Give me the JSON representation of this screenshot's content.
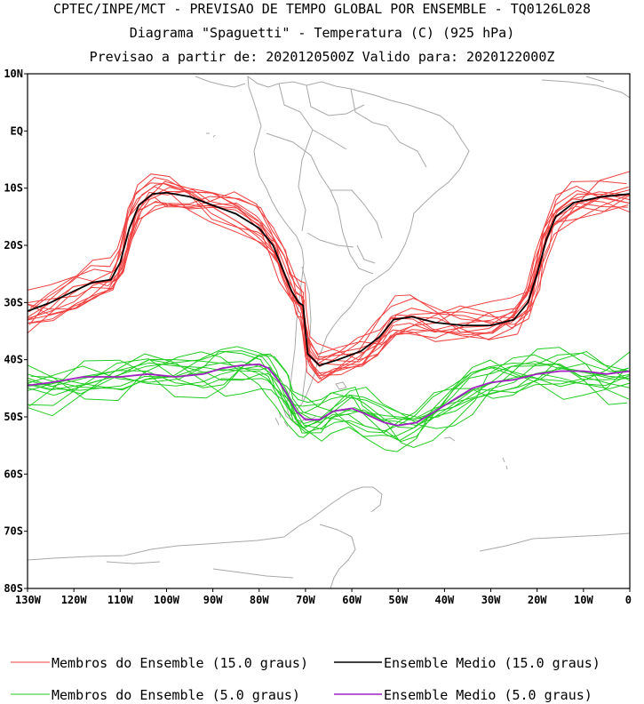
{
  "header": {
    "line1": "CPTEC/INPE/MCT - PREVISAO DE TEMPO GLOBAL POR ENSEMBLE - TQ0126L028",
    "line2": "Diagrama \"Spaguetti\" - Temperatura (C) (925 hPa)",
    "line3": "Previsao a partir de: 2020120500Z  Valido para: 2020122000Z"
  },
  "axes": {
    "lat_labels": [
      "10N",
      "EQ",
      "10S",
      "20S",
      "30S",
      "40S",
      "50S",
      "60S",
      "70S",
      "80S"
    ],
    "lon_labels": [
      "130W",
      "120W",
      "110W",
      "100W",
      "90W",
      "80W",
      "70W",
      "60W",
      "50W",
      "40W",
      "30W",
      "20W",
      "10W",
      "0"
    ],
    "lat_range": [
      10,
      -80
    ],
    "lon_range": [
      -130,
      0
    ]
  },
  "legend": [
    {
      "label": "Membros do Ensemble (15.0 graus)",
      "color": "#f04040"
    },
    {
      "label": "Ensemble Medio (15.0 graus)",
      "color": "#000000"
    },
    {
      "label": "Membros do Ensemble (5.0 graus)",
      "color": "#22cc22"
    },
    {
      "label": "Ensemble Medio (5.0 graus)",
      "color": "#a020c0"
    }
  ],
  "chart_data": {
    "type": "line",
    "map_projection": "cylindrical equidistant",
    "x_unit": "longitude (deg, negative = W)",
    "y_unit": "latitude (deg, negative = S)",
    "series": [
      {
        "name": "Ensemble Medio (15.0 graus)",
        "color": "#000000",
        "points": [
          [
            -130,
            -31.5
          ],
          [
            -125,
            -30
          ],
          [
            -120,
            -28
          ],
          [
            -116,
            -26.5
          ],
          [
            -112,
            -26
          ],
          [
            -110,
            -23
          ],
          [
            -108,
            -17
          ],
          [
            -106,
            -13
          ],
          [
            -103,
            -11
          ],
          [
            -100,
            -10.8
          ],
          [
            -95,
            -11.5
          ],
          [
            -90,
            -13
          ],
          [
            -85,
            -14.5
          ],
          [
            -80,
            -17
          ],
          [
            -77,
            -20
          ],
          [
            -75,
            -24
          ],
          [
            -73,
            -28
          ],
          [
            -71.5,
            -30
          ],
          [
            -70.5,
            -30.5
          ],
          [
            -70,
            -35
          ],
          [
            -69.5,
            -39
          ],
          [
            -67,
            -41
          ],
          [
            -63,
            -40
          ],
          [
            -58,
            -38.5
          ],
          [
            -54,
            -36
          ],
          [
            -51,
            -33
          ],
          [
            -47,
            -32.5
          ],
          [
            -42,
            -33.5
          ],
          [
            -36,
            -34
          ],
          [
            -30,
            -34
          ],
          [
            -25,
            -33
          ],
          [
            -22,
            -30
          ],
          [
            -20,
            -25
          ],
          [
            -18,
            -19
          ],
          [
            -16,
            -15
          ],
          [
            -12,
            -12.5
          ],
          [
            -6,
            -11.5
          ],
          [
            0,
            -11
          ]
        ]
      },
      {
        "name": "Ensemble Medio (5.0 graus)",
        "color": "#a020c0",
        "points": [
          [
            -130,
            -44.5
          ],
          [
            -125,
            -44
          ],
          [
            -118,
            -43
          ],
          [
            -110,
            -43
          ],
          [
            -104,
            -42.5
          ],
          [
            -98,
            -43
          ],
          [
            -92,
            -42.5
          ],
          [
            -88,
            -41.5
          ],
          [
            -84,
            -41
          ],
          [
            -80,
            -40.8
          ],
          [
            -78,
            -41.5
          ],
          [
            -76,
            -43.5
          ],
          [
            -74,
            -46
          ],
          [
            -72,
            -49
          ],
          [
            -70,
            -50.5
          ],
          [
            -67,
            -50.5
          ],
          [
            -64,
            -49
          ],
          [
            -60,
            -48.5
          ],
          [
            -57,
            -49.5
          ],
          [
            -53,
            -51
          ],
          [
            -50,
            -51.5
          ],
          [
            -46,
            -51
          ],
          [
            -42,
            -49
          ],
          [
            -38,
            -47
          ],
          [
            -34,
            -45
          ],
          [
            -30,
            -44
          ],
          [
            -25,
            -43.5
          ],
          [
            -20,
            -42.5
          ],
          [
            -15,
            -42
          ],
          [
            -10,
            -42
          ],
          [
            -5,
            -42.5
          ],
          [
            0,
            -42
          ]
        ]
      }
    ],
    "member_series": [
      {
        "name": "Membros do Ensemble (15.0 graus)",
        "color": "#f04040",
        "count": 14
      },
      {
        "name": "Membros do Ensemble (5.0 graus)",
        "color": "#22cc22",
        "count": 14
      }
    ]
  }
}
